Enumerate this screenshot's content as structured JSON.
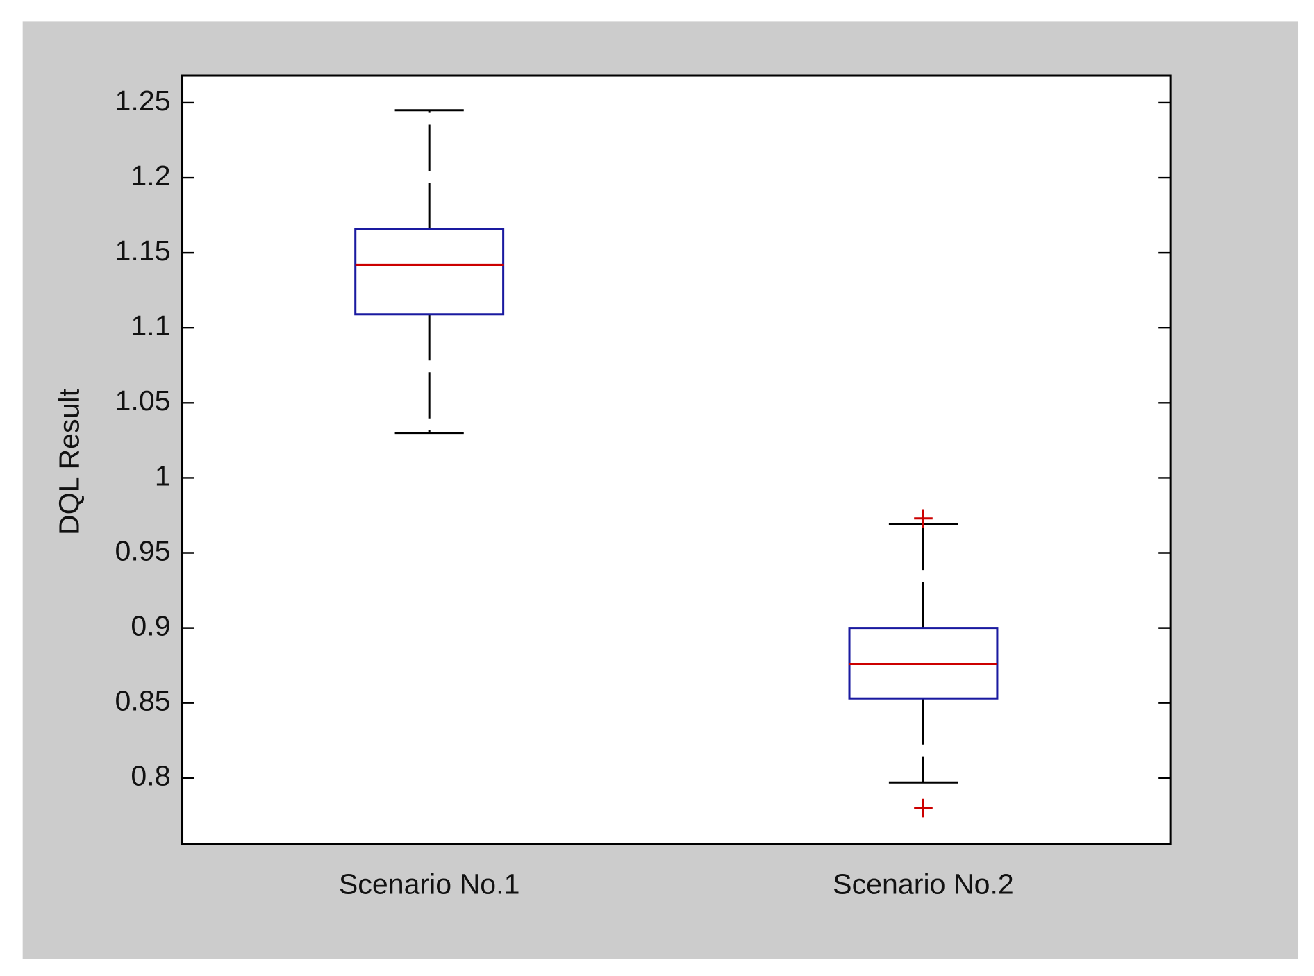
{
  "chart_data": {
    "type": "box",
    "ylabel": "DQL Result",
    "categories": [
      "Scenario No.1",
      "Scenario No.2"
    ],
    "boxes": [
      {
        "whisker_low": 1.03,
        "q1": 1.109,
        "median": 1.142,
        "q3": 1.166,
        "whisker_high": 1.245
      },
      {
        "whisker_low": 0.797,
        "q1": 0.853,
        "median": 0.876,
        "q3": 0.9,
        "whisker_high": 0.969,
        "outliers": [
          0.973,
          0.78
        ]
      }
    ],
    "box_color": "#1a1aa0",
    "median_color": "#cc0000",
    "whisker_color": "#000000",
    "outlier_color": "#cc0000",
    "ylim": [
      0.756,
      1.268
    ],
    "yticks": [
      0.8,
      0.85,
      0.9,
      0.95,
      1,
      1.05,
      1.1,
      1.15,
      1.2,
      1.25
    ],
    "grid": false
  }
}
